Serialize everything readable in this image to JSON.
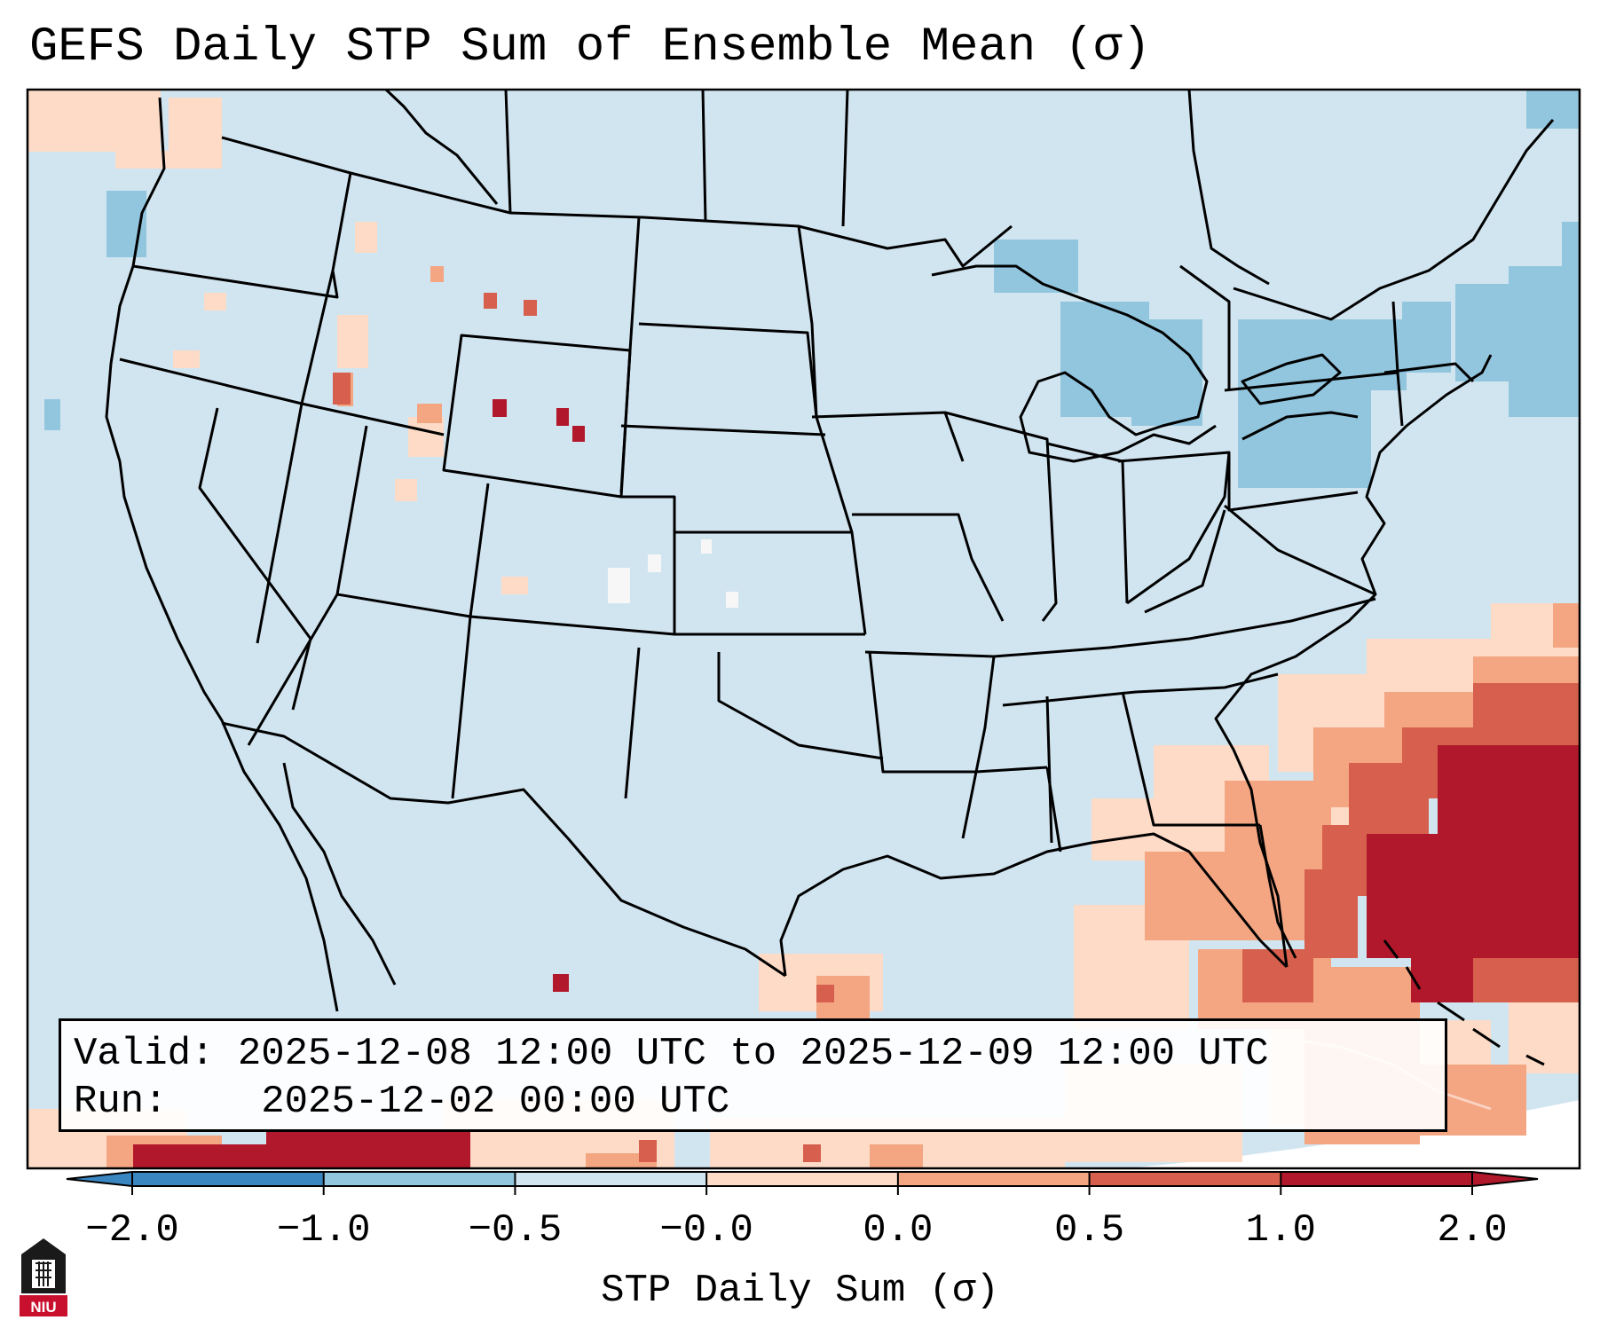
{
  "map": {
    "title": "GEFS Daily STP Sum of Ensemble Mean (σ)",
    "valid_label": "Valid:",
    "valid_text": "2025-12-08 12:00 UTC to 2025-12-09 12:00 UTC",
    "run_label": "Run:",
    "run_text": "2025-12-02 00:00 UTC"
  },
  "colorbar": {
    "label": "STP Daily Sum (σ)",
    "ticks": [
      "−2.0",
      "−1.0",
      "−0.5",
      "−0.0",
      "0.0",
      "0.5",
      "1.0",
      "2.0"
    ],
    "colors": [
      "#3a86c1",
      "#92c6de",
      "#d1e5f0",
      "#f7f7f7",
      "#fddbc7",
      "#f4a582",
      "#d6604d",
      "#b2182b"
    ]
  },
  "logo": {
    "text": "NIU"
  },
  "icons": [
    "niu-logo-icon"
  ]
}
